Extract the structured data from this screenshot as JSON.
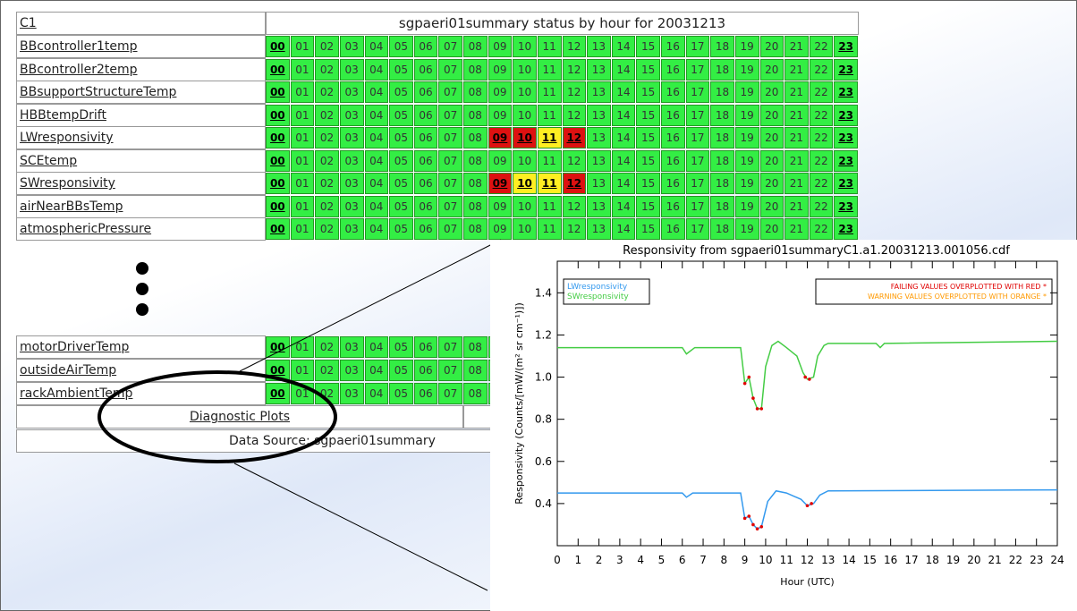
{
  "table": {
    "corner": "C1",
    "title": "sgpaeri01summary status by hour for 20031213",
    "hours": [
      "00",
      "01",
      "02",
      "03",
      "04",
      "05",
      "06",
      "07",
      "08",
      "09",
      "10",
      "11",
      "12",
      "13",
      "14",
      "15",
      "16",
      "17",
      "18",
      "19",
      "20",
      "21",
      "22",
      "23"
    ],
    "rows": [
      {
        "name": "BBcontroller1temp"
      },
      {
        "name": "BBcontroller2temp"
      },
      {
        "name": "BBsupportStructureTemp"
      },
      {
        "name": "HBBtempDrift"
      },
      {
        "name": "LWresponsivity",
        "fail": [
          9,
          10,
          12
        ],
        "warn": [
          11
        ]
      },
      {
        "name": "SCEtemp"
      },
      {
        "name": "SWresponsivity",
        "fail": [
          9,
          12
        ],
        "warn": [
          10,
          11
        ]
      },
      {
        "name": "airNearBBsTemp"
      },
      {
        "name": "atmosphericPressure"
      }
    ],
    "rows_bottom": [
      {
        "name": "motorDriverTemp"
      },
      {
        "name": "outsideAirTemp"
      },
      {
        "name": "rackAmbientTemp"
      }
    ],
    "diagnostic": "Diagnostic Plots",
    "source": "Data Source: sgpaeri01summary"
  },
  "chart_data": {
    "type": "line",
    "title": "Responsivity from sgpaeri01summaryC1.a1.20031213.001056.cdf",
    "x_label": "Hour (UTC)",
    "y_label": "Responsivity (Counts/[mW/(m² sr cm⁻¹)])",
    "xlim": [
      0,
      24
    ],
    "xticks": [
      0,
      1,
      2,
      3,
      4,
      5,
      6,
      7,
      8,
      9,
      10,
      11,
      12,
      13,
      14,
      15,
      16,
      17,
      18,
      19,
      20,
      21,
      22,
      23,
      24
    ],
    "ylim": [
      0.2,
      1.55
    ],
    "yticks": [
      0.4,
      0.6,
      0.8,
      1.0,
      1.2,
      1.4
    ],
    "series": [
      {
        "name": "LWresponsivity",
        "color": "#3399ee",
        "x": [
          0,
          6,
          6.2,
          6.5,
          8.8,
          9,
          9.2,
          9.4,
          9.6,
          9.8,
          10.1,
          10.5,
          11,
          11.7,
          12,
          12.3,
          12.6,
          13,
          24
        ],
        "values": [
          0.45,
          0.45,
          0.43,
          0.45,
          0.45,
          0.33,
          0.34,
          0.3,
          0.28,
          0.29,
          0.41,
          0.46,
          0.45,
          0.42,
          0.39,
          0.4,
          0.44,
          0.46,
          0.465
        ]
      },
      {
        "name": "SWresponsivity",
        "color": "#44cc44",
        "x": [
          0,
          6,
          6.2,
          6.6,
          8.8,
          9,
          9.2,
          9.4,
          9.6,
          9.8,
          10,
          10.3,
          10.6,
          11,
          11.5,
          11.8,
          12,
          12.3,
          12.5,
          12.8,
          13,
          15.3,
          15.5,
          15.7,
          24
        ],
        "values": [
          1.14,
          1.14,
          1.11,
          1.14,
          1.14,
          0.97,
          1.0,
          0.9,
          0.85,
          0.85,
          1.05,
          1.15,
          1.17,
          1.14,
          1.1,
          1.02,
          0.99,
          1.0,
          1.1,
          1.15,
          1.16,
          1.16,
          1.14,
          1.16,
          1.17
        ]
      }
    ],
    "flagged": {
      "color": "#e00000",
      "x": [
        9,
        9.2,
        9.4,
        9.6,
        9.8,
        12,
        12.2,
        9,
        9.2,
        9.4,
        9.6,
        9.8,
        11.9,
        12.1
      ],
      "values": [
        0.33,
        0.34,
        0.3,
        0.28,
        0.29,
        0.39,
        0.4,
        0.97,
        1.0,
        0.9,
        0.85,
        0.85,
        1.0,
        0.99
      ]
    },
    "legend_left": [
      "LWresponsivity",
      "SWresponsivity"
    ],
    "annotations": [
      {
        "text": "FAILING VALUES OVERPLOTTED WITH RED *",
        "color": "#e00000"
      },
      {
        "text": "WARNING VALUES OVERPLOTTED WITH ORANGE *",
        "color": "#ff9900"
      }
    ]
  }
}
